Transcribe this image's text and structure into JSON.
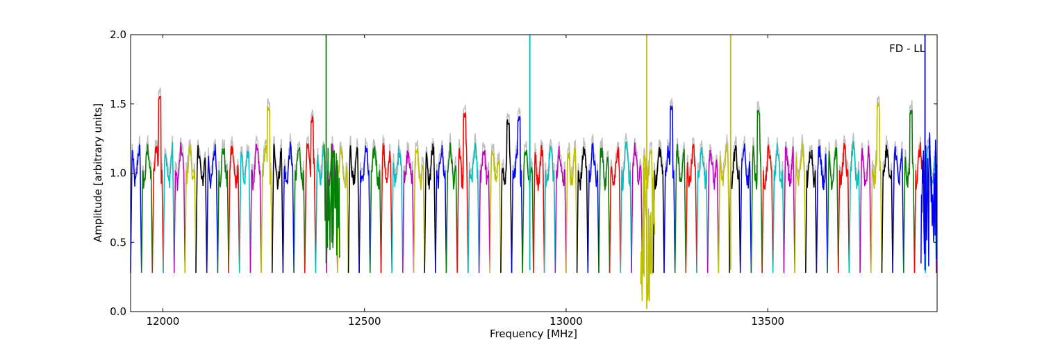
{
  "chart_data": {
    "type": "line",
    "title": "",
    "annotation": "FD - LL",
    "xlabel": "Frequency [MHz]",
    "ylabel": "Amplitude [arbitrary units]",
    "xlim": [
      11920,
      13920
    ],
    "ylim": [
      0.0,
      2.0
    ],
    "x_ticks": [
      12000,
      12500,
      13000,
      13500
    ],
    "x_tick_labels": [
      "12000",
      "12500",
      "13000",
      "13500"
    ],
    "y_ticks": [
      0.0,
      0.5,
      1.0,
      1.5,
      2.0
    ],
    "y_tick_labels": [
      "0.0",
      "0.5",
      "1.0",
      "1.5",
      "2.0"
    ],
    "grid": false,
    "background_color": "#bfbfbf",
    "channel_colors": [
      "#0000ff",
      "#008000",
      "#ff0000",
      "#00bfbf",
      "#bf00bf",
      "#bfbf00",
      "#000000"
    ],
    "channel_start": 11920,
    "channel_width": 27,
    "channel_min": 0.28,
    "channel_max": 1.25,
    "peaks": [
      {
        "x": 11976,
        "y": 1.57
      },
      {
        "x": 12265,
        "y": 1.49
      },
      {
        "x": 12358,
        "y": 1.41
      },
      {
        "x": 12755,
        "y": 1.45
      },
      {
        "x": 12845,
        "y": 1.4
      },
      {
        "x": 12882,
        "y": 1.42
      },
      {
        "x": 13262,
        "y": 1.5
      },
      {
        "x": 13460,
        "y": 1.47
      },
      {
        "x": 13768,
        "y": 1.52
      },
      {
        "x": 13852,
        "y": 1.47
      }
    ],
    "spikes": [
      {
        "x": 12405,
        "low": 0.35,
        "high": 2.0,
        "color": "#008000"
      },
      {
        "x": 12910,
        "low": 0.3,
        "high": 2.0,
        "color": "#00bfbf"
      },
      {
        "x": 13200,
        "low": 0.02,
        "high": 2.0,
        "color": "#bfbf00"
      },
      {
        "x": 13408,
        "low": 0.3,
        "high": 2.0,
        "color": "#bfbf00"
      },
      {
        "x": 13890,
        "low": 0.3,
        "high": 2.0,
        "color": "#0000ff"
      }
    ],
    "noise_bands": [
      {
        "x0": 13185,
        "x1": 13220,
        "min": 0.02,
        "max": 1.05,
        "color": "#bfbf00"
      },
      {
        "x0": 12400,
        "x1": 12440,
        "min": 0.35,
        "max": 1.25,
        "color": "#008000"
      },
      {
        "x0": 13880,
        "x1": 13920,
        "min": 0.3,
        "max": 1.3,
        "color": "#0000ff"
      }
    ]
  }
}
